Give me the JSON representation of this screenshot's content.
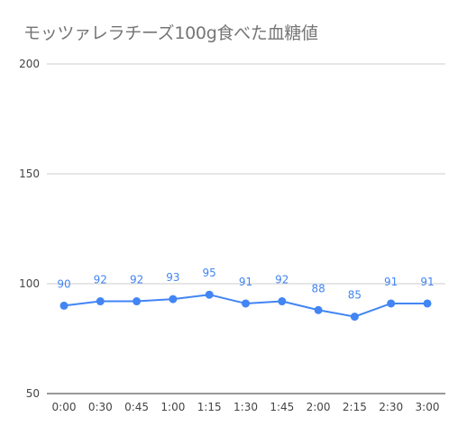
{
  "chart_data": {
    "type": "line",
    "title": "モッツァレラチーズ100g食べた血糖値",
    "xlabel": "",
    "ylabel": "",
    "categories": [
      "0:00",
      "0:30",
      "0:45",
      "1:00",
      "1:15",
      "1:30",
      "1:45",
      "2:00",
      "2:15",
      "2:30",
      "3:00"
    ],
    "series": [
      {
        "values": [
          90,
          92,
          92,
          93,
          95,
          91,
          92,
          88,
          85,
          91,
          91
        ]
      }
    ],
    "ylim": [
      50,
      200
    ],
    "yticks": [
      50,
      100,
      150,
      200
    ],
    "grid": true,
    "data_labels": true,
    "colors": {
      "series": "#4285f4",
      "grid": "#cccccc",
      "title": "#757575",
      "axis_text": "#444444"
    }
  }
}
